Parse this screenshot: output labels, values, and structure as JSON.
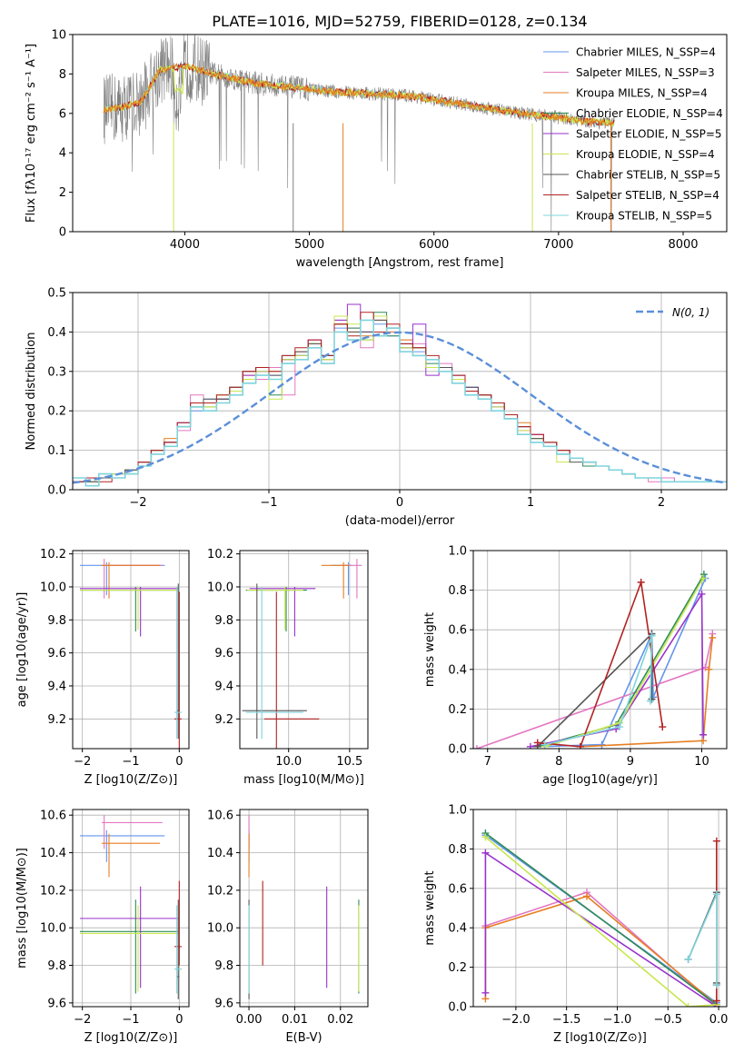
{
  "colors": {
    "chabrier_miles": "#6495ed",
    "salpeter_miles": "#e377c2",
    "kroupa_miles": "#e67e22",
    "chabrier_elodie": "#2e8b57",
    "salpeter_elodie": "#9932cc",
    "kroupa_elodie": "#c8e650",
    "chabrier_stelib": "#555555",
    "salpeter_stelib": "#b22222",
    "kroupa_stelib": "#7fd4dc",
    "gauss": "#5b8fd9"
  },
  "chart_data": [
    {
      "id": "spectrum",
      "type": "line",
      "title": "PLATE=1016, MJD=52759, FIBERID=0128, z=0.134",
      "xlabel": "wavelength [Angstrom, rest frame]",
      "ylabel": "Flux [fλ10⁻¹⁷ erg cm⁻² s⁻¹ A⁻¹]",
      "xlim": [
        3100,
        8350
      ],
      "ylim": [
        0,
        10
      ],
      "xticks": [
        "4000",
        "5000",
        "6000",
        "7000",
        "8000"
      ],
      "yticks": [
        "0",
        "2",
        "4",
        "6",
        "8",
        "10"
      ],
      "grid": false,
      "legend_position": "right",
      "legend": [
        "Chabrier MILES, N_SSP=4",
        "Salpeter MILES, N_SSP=3",
        "Kroupa MILES, N_SSP=4",
        "Chabrier ELODIE, N_SSP=4",
        "Salpeter ELODIE, N_SSP=5",
        "Kroupa ELODIE, N_SSP=4",
        "Chabrier STELIB, N_SSP=5",
        "Salpeter STELIB, N_SSP=4",
        "Kroupa STELIB, N_SSP=5"
      ],
      "continuum_x": [
        3350,
        3500,
        3650,
        3800,
        4000,
        4300,
        4600,
        4900,
        5200,
        5500,
        5800,
        6100,
        6400,
        6700,
        7000,
        7200,
        7450
      ],
      "continuum_y": [
        6.2,
        6.3,
        6.6,
        8.2,
        8.4,
        7.9,
        7.5,
        7.3,
        7.1,
        7.0,
        6.9,
        6.6,
        6.3,
        6.0,
        5.8,
        5.6,
        5.5
      ]
    },
    {
      "id": "residuals",
      "type": "line",
      "xlabel": "(data-model)/error",
      "ylabel": "Normed distribution",
      "xlim": [
        -2.5,
        2.5
      ],
      "ylim": [
        0,
        0.5
      ],
      "xticks": [
        "−2",
        "−1",
        "0",
        "1",
        "2"
      ],
      "yticks": [
        "0.0",
        "0.1",
        "0.2",
        "0.3",
        "0.4",
        "0.5"
      ],
      "grid": true,
      "legend_position": "upper-right",
      "legend": [
        "N(0, 1)"
      ]
    },
    {
      "id": "age_vs_z",
      "type": "scatter",
      "xlabel": "Z [log10(Z/Z⊙)]",
      "ylabel": "age  [log10(age/yr)]",
      "xlim": [
        -2.2,
        0.2
      ],
      "ylim": [
        9.02,
        10.22
      ],
      "xticks": [
        "−2",
        "−1",
        "0"
      ],
      "yticks": [
        "9.2",
        "9.4",
        "9.6",
        "9.8",
        "10.0",
        "10.2"
      ],
      "grid": true
    },
    {
      "id": "age_vs_mass",
      "type": "scatter",
      "xlabel": "mass [log10(M/M⊙)]",
      "xlim": [
        9.6,
        10.65
      ],
      "ylim": [
        9.02,
        10.22
      ],
      "xticks": [
        "10.0",
        "10.5"
      ],
      "yticks": [
        "9.2",
        "9.4",
        "9.6",
        "9.8",
        "10.0",
        "10.2"
      ],
      "grid": true
    },
    {
      "id": "weight_vs_age",
      "type": "line",
      "xlabel": "age  [log10(age/yr)]",
      "ylabel": "mass weight",
      "xlim": [
        6.8,
        10.35
      ],
      "ylim": [
        0,
        1
      ],
      "xticks": [
        "7",
        "8",
        "9",
        "10"
      ],
      "yticks": [
        "0.0",
        "0.2",
        "0.4",
        "0.6",
        "0.8",
        "1.0"
      ],
      "grid": true
    },
    {
      "id": "mass_vs_z",
      "type": "scatter",
      "xlabel": "Z [log10(Z/Z⊙)]",
      "ylabel": "mass [log10(M/M⊙)]",
      "xlim": [
        -2.2,
        0.2
      ],
      "ylim": [
        9.58,
        10.63
      ],
      "xticks": [
        "−2",
        "−1",
        "0"
      ],
      "yticks": [
        "9.6",
        "9.8",
        "10.0",
        "10.2",
        "10.4",
        "10.6"
      ],
      "grid": true
    },
    {
      "id": "mass_vs_ebv",
      "type": "scatter",
      "xlabel": "E(B-V)",
      "xlim": [
        -0.002,
        0.026
      ],
      "ylim": [
        9.58,
        10.63
      ],
      "xticks": [
        "0.00",
        "0.01",
        "0.02"
      ],
      "yticks": [
        "9.6",
        "9.8",
        "10.0",
        "10.2",
        "10.4",
        "10.6"
      ],
      "grid": true
    },
    {
      "id": "weight_vs_z",
      "type": "line",
      "xlabel": "Z [log10(Z/Z⊙)]",
      "ylabel": "mass weight",
      "xlim": [
        -2.42,
        0.08
      ],
      "ylim": [
        0,
        1
      ],
      "xticks": [
        "−2.0",
        "−1.5",
        "−1.0",
        "−0.5",
        "0.0"
      ],
      "yticks": [
        "0.0",
        "0.2",
        "0.4",
        "0.6",
        "0.8",
        "1.0"
      ],
      "grid": true
    }
  ],
  "hist": {
    "edges_start": -2.5,
    "bin_width": 0.1,
    "series": [
      {
        "key": "chabrier_miles",
        "values": [
          0.02,
          0.03,
          0.03,
          0.03,
          0.05,
          0.07,
          0.1,
          0.12,
          0.17,
          0.2,
          0.23,
          0.22,
          0.24,
          0.27,
          0.3,
          0.29,
          0.32,
          0.34,
          0.36,
          0.33,
          0.41,
          0.38,
          0.4,
          0.42,
          0.39,
          0.37,
          0.35,
          0.33,
          0.3,
          0.28,
          0.26,
          0.24,
          0.21,
          0.18,
          0.16,
          0.13,
          0.12,
          0.09,
          0.08,
          0.07,
          0.06,
          0.05,
          0.04,
          0.03,
          0.03,
          0.03,
          0.02,
          0.02,
          0.02,
          0.02
        ]
      },
      {
        "key": "salpeter_miles",
        "values": [
          0.03,
          0.02,
          0.03,
          0.04,
          0.05,
          0.06,
          0.09,
          0.12,
          0.15,
          0.24,
          0.2,
          0.23,
          0.25,
          0.3,
          0.28,
          0.31,
          0.24,
          0.35,
          0.38,
          0.34,
          0.43,
          0.41,
          0.36,
          0.44,
          0.4,
          0.38,
          0.37,
          0.31,
          0.32,
          0.28,
          0.25,
          0.23,
          0.21,
          0.19,
          0.15,
          0.14,
          0.11,
          0.1,
          0.08,
          0.07,
          0.06,
          0.05,
          0.04,
          0.03,
          0.02,
          0.03,
          0.02,
          0.02,
          0.02,
          0.02
        ]
      },
      {
        "key": "kroupa_miles",
        "values": [
          0.02,
          0.03,
          0.03,
          0.03,
          0.05,
          0.07,
          0.1,
          0.13,
          0.16,
          0.21,
          0.22,
          0.24,
          0.25,
          0.29,
          0.31,
          0.3,
          0.33,
          0.35,
          0.37,
          0.33,
          0.42,
          0.4,
          0.39,
          0.43,
          0.4,
          0.38,
          0.34,
          0.33,
          0.3,
          0.28,
          0.25,
          0.24,
          0.2,
          0.18,
          0.17,
          0.13,
          0.12,
          0.1,
          0.08,
          0.07,
          0.06,
          0.05,
          0.04,
          0.03,
          0.03,
          0.02,
          0.02,
          0.02,
          0.02,
          0.02
        ]
      },
      {
        "key": "chabrier_elodie",
        "values": [
          0.02,
          0.02,
          0.03,
          0.04,
          0.05,
          0.07,
          0.1,
          0.12,
          0.16,
          0.22,
          0.21,
          0.23,
          0.26,
          0.28,
          0.31,
          0.24,
          0.33,
          0.34,
          0.37,
          0.34,
          0.44,
          0.41,
          0.38,
          0.45,
          0.39,
          0.36,
          0.36,
          0.32,
          0.31,
          0.28,
          0.24,
          0.23,
          0.22,
          0.18,
          0.14,
          0.13,
          0.11,
          0.09,
          0.08,
          0.06,
          0.06,
          0.05,
          0.04,
          0.03,
          0.03,
          0.02,
          0.02,
          0.02,
          0.02,
          0.02
        ]
      },
      {
        "key": "salpeter_elodie",
        "values": [
          0.02,
          0.03,
          0.03,
          0.03,
          0.05,
          0.07,
          0.1,
          0.12,
          0.17,
          0.22,
          0.22,
          0.23,
          0.25,
          0.29,
          0.3,
          0.28,
          0.33,
          0.34,
          0.38,
          0.32,
          0.43,
          0.47,
          0.4,
          0.44,
          0.41,
          0.36,
          0.42,
          0.29,
          0.31,
          0.29,
          0.26,
          0.24,
          0.21,
          0.18,
          0.16,
          0.14,
          0.11,
          0.09,
          0.08,
          0.07,
          0.06,
          0.05,
          0.04,
          0.03,
          0.03,
          0.02,
          0.02,
          0.02,
          0.02,
          0.02
        ]
      },
      {
        "key": "kroupa_elodie",
        "values": [
          0.02,
          0.02,
          0.03,
          0.04,
          0.05,
          0.07,
          0.1,
          0.11,
          0.16,
          0.22,
          0.21,
          0.24,
          0.25,
          0.28,
          0.3,
          0.23,
          0.33,
          0.34,
          0.37,
          0.33,
          0.44,
          0.42,
          0.38,
          0.44,
          0.41,
          0.36,
          0.36,
          0.31,
          0.3,
          0.28,
          0.24,
          0.24,
          0.21,
          0.18,
          0.15,
          0.13,
          0.11,
          0.07,
          0.08,
          0.07,
          0.06,
          0.05,
          0.04,
          0.03,
          0.03,
          0.02,
          0.02,
          0.02,
          0.02,
          0.02
        ]
      },
      {
        "key": "chabrier_stelib",
        "values": [
          0.02,
          0.02,
          0.03,
          0.03,
          0.05,
          0.07,
          0.1,
          0.12,
          0.16,
          0.21,
          0.23,
          0.23,
          0.26,
          0.3,
          0.31,
          0.29,
          0.34,
          0.35,
          0.37,
          0.34,
          0.42,
          0.4,
          0.4,
          0.43,
          0.41,
          0.37,
          0.36,
          0.33,
          0.31,
          0.29,
          0.26,
          0.24,
          0.22,
          0.18,
          0.16,
          0.13,
          0.12,
          0.1,
          0.07,
          0.07,
          0.06,
          0.05,
          0.04,
          0.03,
          0.03,
          0.02,
          0.02,
          0.02,
          0.02,
          0.02
        ]
      },
      {
        "key": "salpeter_stelib",
        "values": [
          0.02,
          0.03,
          0.02,
          0.03,
          0.04,
          0.07,
          0.1,
          0.12,
          0.17,
          0.22,
          0.22,
          0.24,
          0.26,
          0.3,
          0.31,
          0.3,
          0.34,
          0.36,
          0.38,
          0.34,
          0.42,
          0.39,
          0.45,
          0.4,
          0.42,
          0.37,
          0.36,
          0.34,
          0.3,
          0.29,
          0.25,
          0.24,
          0.22,
          0.19,
          0.16,
          0.14,
          0.12,
          0.1,
          0.08,
          0.07,
          0.06,
          0.05,
          0.04,
          0.03,
          0.03,
          0.02,
          0.02,
          0.02,
          0.02,
          0.02
        ]
      },
      {
        "key": "kroupa_stelib",
        "values": [
          0.03,
          0.01,
          0.04,
          0.03,
          0.04,
          0.06,
          0.09,
          0.11,
          0.16,
          0.21,
          0.2,
          0.22,
          0.24,
          0.27,
          0.29,
          0.28,
          0.32,
          0.33,
          0.36,
          0.32,
          0.4,
          0.38,
          0.43,
          0.39,
          0.41,
          0.35,
          0.34,
          0.33,
          0.3,
          0.27,
          0.24,
          0.23,
          0.2,
          0.18,
          0.14,
          0.12,
          0.11,
          0.09,
          0.08,
          0.07,
          0.06,
          0.05,
          0.04,
          0.03,
          0.03,
          0.02,
          0.02,
          0.02,
          0.02,
          0.02
        ]
      }
    ]
  },
  "ssp": [
    {
      "key": "chabrier_miles",
      "Z": -1.5,
      "Zlo": -2.05,
      "Zhi": -0.3,
      "age": 10.13,
      "ageLo": 9.95,
      "ageHi": 10.15,
      "mass": 10.49,
      "massLo": 10.35,
      "massHi": 10.52,
      "ebv": 0.0,
      "w_age": [
        [
          7.7,
          0.01
        ],
        [
          8.6,
          0.02
        ],
        [
          9.3,
          0.58
        ],
        [
          9.32,
          0.26
        ],
        [
          10.05,
          0.86
        ]
      ],
      "w_z": [
        [
          -2.3,
          0.87
        ],
        [
          -0.02,
          0.02
        ]
      ]
    },
    {
      "key": "salpeter_miles",
      "Z": -1.55,
      "Zlo": -1.6,
      "Zhi": -0.35,
      "age": 10.13,
      "ageLo": 9.93,
      "ageHi": 10.17,
      "mass": 10.56,
      "massLo": 10.42,
      "massHi": 10.6,
      "ebv": 0.0,
      "w_age": [
        [
          6.85,
          0.0
        ],
        [
          10.05,
          0.41
        ],
        [
          10.15,
          0.58
        ]
      ],
      "w_z": [
        [
          -2.3,
          0.41
        ],
        [
          -1.3,
          0.58
        ],
        [
          -0.02,
          0.0
        ]
      ]
    },
    {
      "key": "kroupa_miles",
      "Z": -1.45,
      "Zlo": -1.6,
      "Zhi": -0.4,
      "age": 10.13,
      "ageLo": 9.93,
      "ageHi": 10.15,
      "mass": 10.45,
      "massLo": 10.27,
      "massHi": 10.5,
      "ebv": 0.0,
      "w_age": [
        [
          8.3,
          0.01
        ],
        [
          10.02,
          0.04
        ],
        [
          10.1,
          0.4
        ],
        [
          10.15,
          0.56
        ]
      ],
      "w_z": [
        [
          -2.3,
          0.04
        ],
        [
          -2.3,
          0.4
        ],
        [
          -1.3,
          0.56
        ],
        [
          -0.02,
          0.01
        ]
      ]
    },
    {
      "key": "chabrier_elodie",
      "Z": -0.9,
      "Zlo": -2.05,
      "Zhi": -0.02,
      "age": 9.98,
      "ageLo": 9.73,
      "ageHi": 10.0,
      "mass": 9.98,
      "massLo": 9.65,
      "massHi": 10.15,
      "ebv": 0.024,
      "w_age": [
        [
          7.7,
          0.01
        ],
        [
          8.8,
          0.12
        ],
        [
          10.03,
          0.88
        ]
      ],
      "w_z": [
        [
          -2.3,
          0.88
        ],
        [
          -0.02,
          0.01
        ]
      ]
    },
    {
      "key": "salpeter_elodie",
      "Z": -0.8,
      "Zlo": -2.05,
      "Zhi": -0.02,
      "age": 9.99,
      "ageLo": 9.7,
      "ageHi": 10.0,
      "mass": 10.05,
      "massLo": 9.68,
      "massHi": 10.22,
      "ebv": 0.017,
      "w_age": [
        [
          7.6,
          0.01
        ],
        [
          8.8,
          0.1
        ],
        [
          10.0,
          0.78
        ],
        [
          10.02,
          0.07
        ]
      ],
      "w_z": [
        [
          -2.3,
          0.07
        ],
        [
          -2.3,
          0.78
        ],
        [
          -0.02,
          0.0
        ]
      ]
    },
    {
      "key": "kroupa_elodie",
      "Z": -0.85,
      "Zlo": -2.05,
      "Zhi": -0.02,
      "age": 9.98,
      "ageLo": 9.74,
      "ageHi": 10.0,
      "mass": 9.97,
      "massLo": 9.66,
      "massHi": 10.12,
      "ebv": 0.024,
      "w_age": [
        [
          7.8,
          0.01
        ],
        [
          8.85,
          0.13
        ],
        [
          10.02,
          0.86
        ]
      ],
      "w_z": [
        [
          -2.3,
          0.86
        ],
        [
          -0.3,
          0.0
        ],
        [
          -0.02,
          0.01
        ]
      ]
    },
    {
      "key": "chabrier_stelib",
      "Z": -0.02,
      "Zlo": -0.05,
      "Zhi": 0.0,
      "age": 9.25,
      "ageLo": 9.08,
      "ageHi": 10.02,
      "mass": 9.74,
      "massLo": 9.62,
      "massHi": 10.15,
      "ebv": 0.0,
      "w_age": [
        [
          7.7,
          0.01
        ],
        [
          9.3,
          0.58
        ],
        [
          9.3,
          0.25
        ]
      ],
      "w_z": [
        [
          -0.3,
          0.24
        ],
        [
          -0.02,
          0.58
        ],
        [
          -0.02,
          0.12
        ]
      ]
    },
    {
      "key": "salpeter_stelib",
      "Z": 0.0,
      "Zlo": -0.1,
      "Zhi": 0.05,
      "age": 9.2,
      "ageLo": 9.02,
      "ageHi": 9.97,
      "mass": 9.9,
      "massLo": 9.8,
      "massHi": 10.25,
      "ebv": 0.003,
      "w_age": [
        [
          7.7,
          0.03
        ],
        [
          8.3,
          0.01
        ],
        [
          9.15,
          0.84
        ],
        [
          9.45,
          0.11
        ]
      ],
      "w_z": [
        [
          -0.02,
          0.03
        ],
        [
          -0.02,
          0.84
        ],
        [
          -0.02,
          0.11
        ]
      ]
    },
    {
      "key": "kroupa_stelib",
      "Z": -0.05,
      "Zlo": -0.1,
      "Zhi": 0.05,
      "age": 9.24,
      "ageLo": 9.08,
      "ageHi": 10.0,
      "mass": 9.78,
      "massLo": 9.65,
      "massHi": 10.12,
      "ebv": 0.0,
      "w_age": [
        [
          7.8,
          0.02
        ],
        [
          8.85,
          0.11
        ],
        [
          9.3,
          0.57
        ],
        [
          9.28,
          0.24
        ]
      ],
      "w_z": [
        [
          -0.3,
          0.24
        ],
        [
          -0.02,
          0.57
        ],
        [
          -0.02,
          0.11
        ]
      ]
    }
  ]
}
